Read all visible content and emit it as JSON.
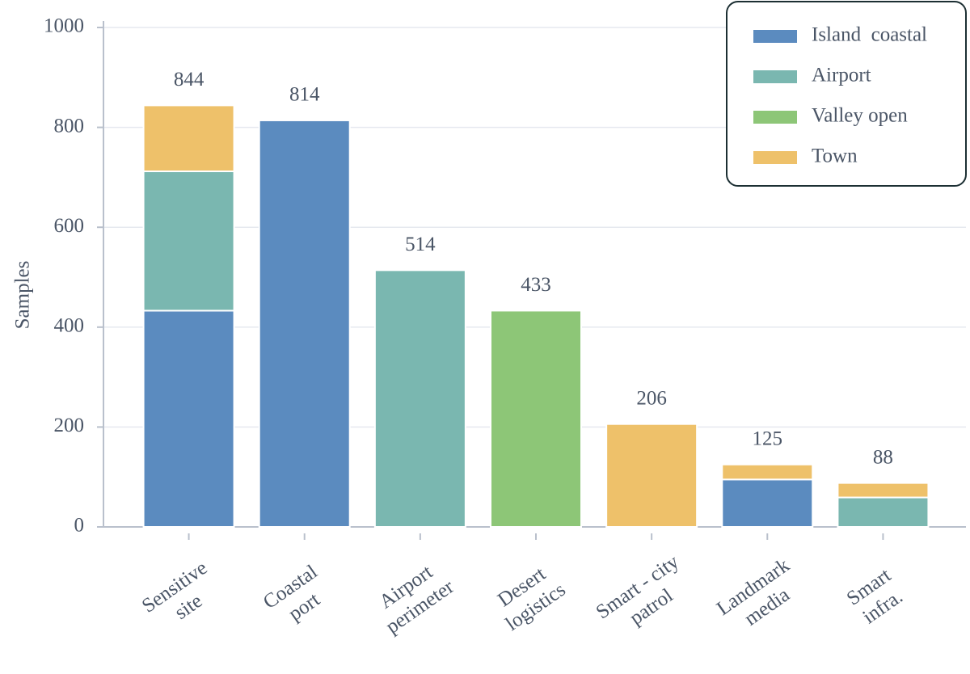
{
  "chart_data": {
    "type": "stacked-bar",
    "y_label": "Samples",
    "categories": [
      "Sensitive\nsite",
      "Coastal\nport",
      "Airport\nperimeter",
      "Desert\nlogistics",
      "Smart - city\npatrol",
      "Landmark\nmedia",
      "Smart\ninfra."
    ],
    "series": [
      {
        "name": "Island  coastal",
        "color": "#5b8bbf",
        "values": [
          433,
          814,
          0,
          0,
          0,
          95,
          0
        ]
      },
      {
        "name": "Airport",
        "color": "#7ab7b0",
        "values": [
          279,
          0,
          514,
          0,
          0,
          0,
          59
        ]
      },
      {
        "name": "Valley open",
        "color": "#8dc677",
        "values": [
          0,
          0,
          0,
          433,
          0,
          0,
          0
        ]
      },
      {
        "name": "Town",
        "color": "#eec16a",
        "values": [
          132,
          0,
          0,
          0,
          206,
          30,
          29
        ]
      }
    ],
    "totals": [
      844,
      814,
      514,
      433,
      206,
      125,
      88
    ],
    "ylim": [
      0,
      1000
    ],
    "yticks": [
      0,
      200,
      400,
      600,
      800,
      1000
    ],
    "grid": true,
    "legend": "top-right"
  }
}
